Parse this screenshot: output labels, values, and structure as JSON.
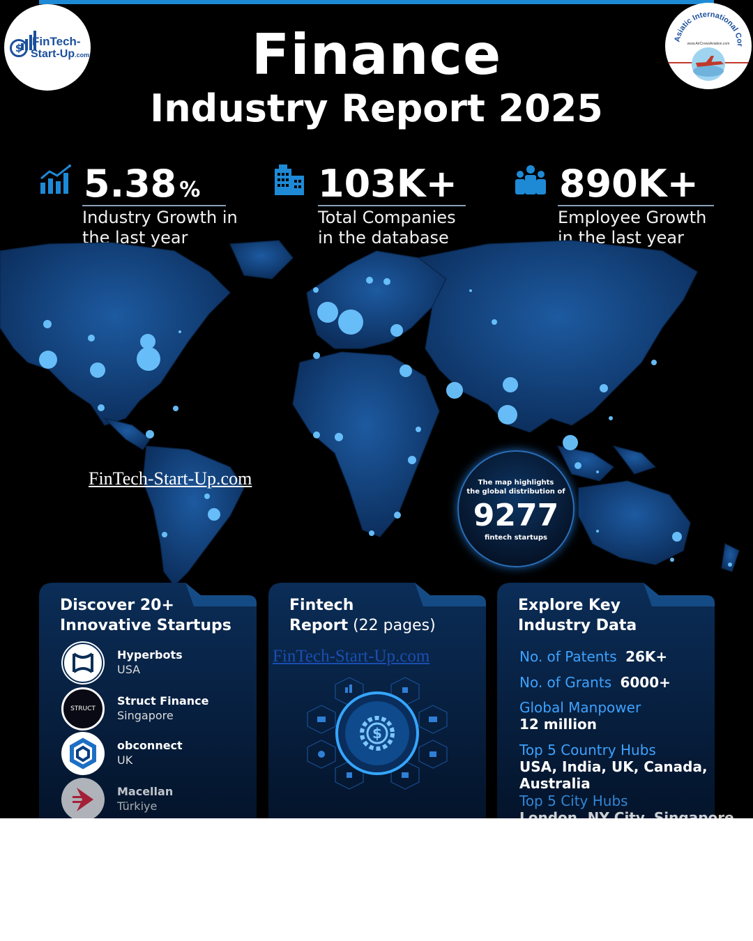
{
  "header": {
    "title": "Finance",
    "subtitle": "Industry Report 2025",
    "logo_left": {
      "line1": "FinTech-",
      "line2": "Start-Up",
      "line2_suffix": ".com"
    },
    "logo_right": {
      "arc_text": "Asiatic International Corp",
      "url_text": "www.AirCrewsAviation.com"
    }
  },
  "stats": [
    {
      "value": "5.38",
      "unit": "%",
      "desc": "Industry Growth in the last year",
      "icon": "growth-chart-icon"
    },
    {
      "value": "103K+",
      "unit": "",
      "desc": "Total Companies in the database",
      "icon": "building-icon"
    },
    {
      "value": "890K+",
      "unit": "",
      "desc": "Employee Growth in the last year",
      "icon": "people-icon"
    }
  ],
  "map": {
    "watermark": "FinTech-Start-Up.com",
    "badge": {
      "line1": "The map highlights",
      "line2": "the global distribution of",
      "value": "9277",
      "line3": "fintech startups"
    }
  },
  "cards": {
    "startups": {
      "title_line1": "Discover 20+",
      "title_line2": "Innovative Startups",
      "items": [
        {
          "name": "Hyperbots",
          "country": "USA",
          "logo_text": ""
        },
        {
          "name": "Struct Finance",
          "country": "Singapore",
          "logo_text": "STRUCT"
        },
        {
          "name": "obconnect",
          "country": "UK",
          "logo_text": ""
        },
        {
          "name": "Macellan",
          "country": "Türkiye",
          "logo_text": ""
        }
      ]
    },
    "report": {
      "title_line1": "Fintech",
      "title_bold": "Report",
      "title_light": " (22 pages)",
      "watermark": "FinTech-Start-Up.com"
    },
    "data": {
      "title_line1": "Explore Key",
      "title_line2": "Industry Data",
      "patents_label": "No. of Patents",
      "patents_value": "26K+",
      "grants_label": "No. of Grants",
      "grants_value": "6000+",
      "manpower_label": "Global Manpower",
      "manpower_value": "12 million",
      "country_hubs_label": "Top 5 Country Hubs",
      "country_hubs_line1": "USA, India, UK, Canada,",
      "country_hubs_line2": "Australia",
      "city_hubs_label": "Top 5 City Hubs",
      "city_hubs_value": "London, NY City, Singapore"
    }
  },
  "colors": {
    "accent": "#1e8ad6",
    "map_fill": "#14447f",
    "highlight": "#3ea2ff"
  }
}
